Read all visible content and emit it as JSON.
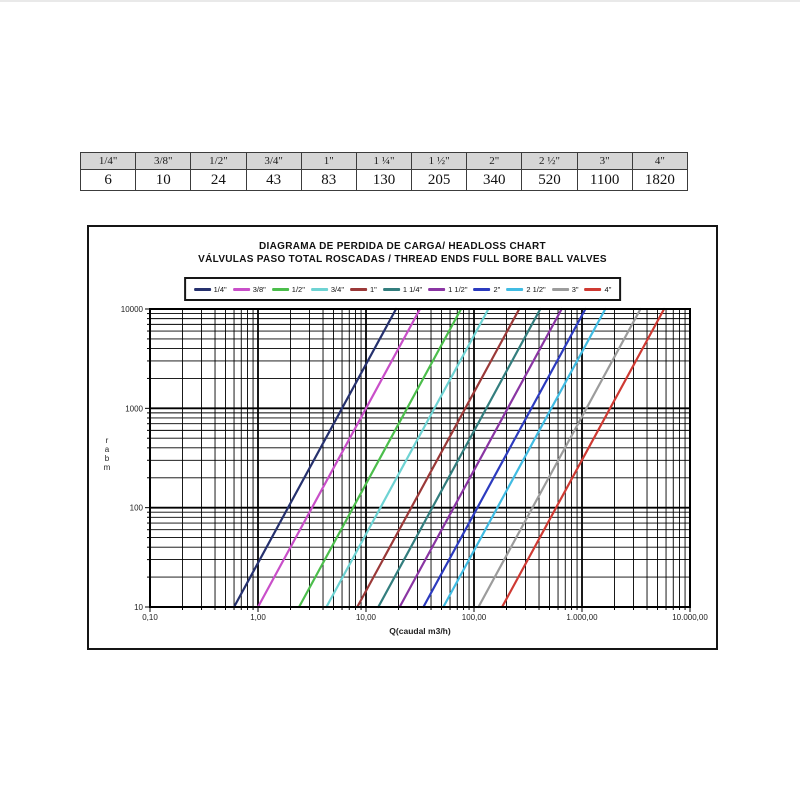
{
  "table": {
    "headers": [
      "1/4\"",
      "3/8\"",
      "1/2\"",
      "3/4\"",
      "1\"",
      "1 ¼\"",
      "1 ½\"",
      "2\"",
      "2 ½\"",
      "3\"",
      "4\""
    ],
    "values": [
      "6",
      "10",
      "24",
      "43",
      "83",
      "130",
      "205",
      "340",
      "520",
      "1100",
      "1820"
    ]
  },
  "chart": {
    "title_line1": "DIAGRAMA DE PERDIDA DE CARGA/ HEADLOSS CHART",
    "title_line2": "VÁLVULAS PASO TOTAL ROSCADAS / THREAD ENDS FULL BORE BALL VALVES",
    "xlabel": "Q(caudal m3/h)",
    "ylabel": "mbar"
  },
  "chart_data": {
    "type": "line",
    "title": "DIAGRAMA DE PERDIDA DE CARGA/ HEADLOSS CHART — VÁLVULAS PASO TOTAL ROSCADAS / THREAD ENDS FULL BORE BALL VALVES",
    "x_scale": "log",
    "y_scale": "log",
    "xlim": [
      0.1,
      10000
    ],
    "ylim": [
      10,
      10000
    ],
    "xlabel": "Q(caudal m3/h)",
    "ylabel": "mbar",
    "grid": "major+minor log grid, black",
    "legend_position": "top",
    "model": "headloss_mbar = 1000 * (Q / kv)^2, lines drawn from 10 to 10000 mbar",
    "x_ticks": [
      {
        "v": 0.1,
        "label": "0,10"
      },
      {
        "v": 1,
        "label": "1,00"
      },
      {
        "v": 10,
        "label": "10,00"
      },
      {
        "v": 100,
        "label": "100,00"
      },
      {
        "v": 1000,
        "label": "1.000,00"
      },
      {
        "v": 10000,
        "label": "10.000,00"
      }
    ],
    "y_ticks": [
      {
        "v": 10,
        "label": "10"
      },
      {
        "v": 100,
        "label": "100"
      },
      {
        "v": 1000,
        "label": "1000"
      },
      {
        "v": 10000,
        "label": "10000"
      }
    ],
    "series": [
      {
        "name": "1/4\"",
        "kv": 6,
        "color": "#26316E",
        "points": [
          [
            0.6,
            10
          ],
          [
            18.97,
            10000
          ]
        ]
      },
      {
        "name": "3/8\"",
        "kv": 10,
        "color": "#C94FC9",
        "points": [
          [
            1.0,
            10
          ],
          [
            31.62,
            10000
          ]
        ]
      },
      {
        "name": "1/2\"",
        "kv": 24,
        "color": "#4CBE4C",
        "points": [
          [
            2.4,
            10
          ],
          [
            75.89,
            10000
          ]
        ]
      },
      {
        "name": "3/4\"",
        "kv": 43,
        "color": "#6ED3D3",
        "points": [
          [
            4.3,
            10
          ],
          [
            135.98,
            10000
          ]
        ]
      },
      {
        "name": "1\"",
        "kv": 83,
        "color": "#9B3938",
        "points": [
          [
            8.3,
            10
          ],
          [
            262.47,
            10000
          ]
        ]
      },
      {
        "name": "1 1/4\"",
        "kv": 130,
        "color": "#337E7E",
        "points": [
          [
            13.0,
            10
          ],
          [
            411.1,
            10000
          ]
        ]
      },
      {
        "name": "1 1/2\"",
        "kv": 205,
        "color": "#8A35A3",
        "points": [
          [
            20.5,
            10
          ],
          [
            648.26,
            10000
          ]
        ]
      },
      {
        "name": "2\"",
        "kv": 340,
        "color": "#2C3BBF",
        "points": [
          [
            34.0,
            10
          ],
          [
            1075.17,
            10000
          ]
        ]
      },
      {
        "name": "2 1/2\"",
        "kv": 520,
        "color": "#41BCE3",
        "points": [
          [
            52.0,
            10
          ],
          [
            1644.38,
            10000
          ]
        ]
      },
      {
        "name": "3\"",
        "kv": 1100,
        "color": "#9C9C9C",
        "points": [
          [
            110.0,
            10
          ],
          [
            3478.51,
            10000
          ]
        ]
      },
      {
        "name": "4\"",
        "kv": 1820,
        "color": "#CF3A33",
        "points": [
          [
            182.0,
            10
          ],
          [
            5755.26,
            10000
          ]
        ]
      }
    ]
  }
}
